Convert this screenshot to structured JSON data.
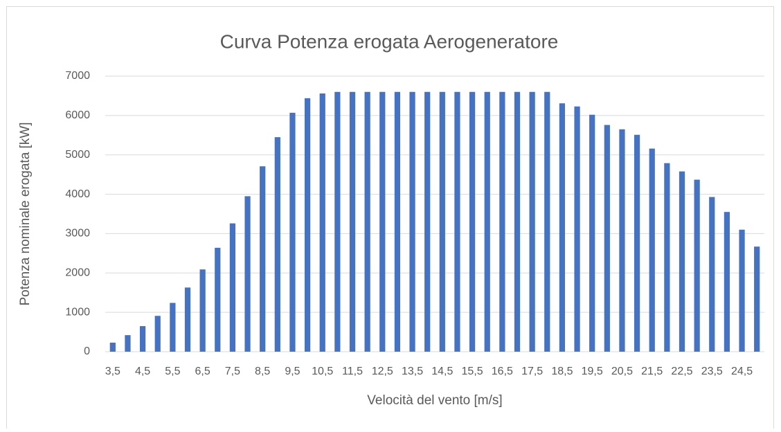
{
  "chart_data": {
    "type": "bar",
    "title": "Curva Potenza erogata Aerogeneratore",
    "x_label": "Velocità del vento [m/s]",
    "y_label": "Potenza nominale erogata [kW]",
    "categories": [
      "3,5",
      null,
      "4,5",
      null,
      "5,5",
      null,
      "6,5",
      null,
      "7,5",
      null,
      "8,5",
      null,
      "9,5",
      null,
      "10,5",
      null,
      "11,5",
      null,
      "12,5",
      null,
      "13,5",
      null,
      "14,5",
      null,
      "15,5",
      null,
      "16,5",
      null,
      "17,5",
      null,
      "18,5",
      null,
      "19,5",
      null,
      "20,5",
      null,
      "21,5",
      null,
      "22,5",
      null,
      "23,5",
      null,
      "24,5",
      null
    ],
    "values": [
      230,
      420,
      650,
      910,
      1240,
      1630,
      2090,
      2640,
      3260,
      3950,
      4710,
      5450,
      6070,
      6440,
      6560,
      6600,
      6600,
      6600,
      6600,
      6600,
      6600,
      6600,
      6600,
      6600,
      6600,
      6600,
      6600,
      6600,
      6600,
      6600,
      6310,
      6230,
      6020,
      5760,
      5650,
      5510,
      5160,
      4790,
      4580,
      4370,
      3930,
      3550,
      3100,
      2670
    ],
    "color": "#4472c4",
    "ylim": [
      0,
      7000
    ],
    "yticks": [
      0,
      1000,
      2000,
      3000,
      4000,
      5000,
      6000,
      7000
    ],
    "grid": true
  }
}
